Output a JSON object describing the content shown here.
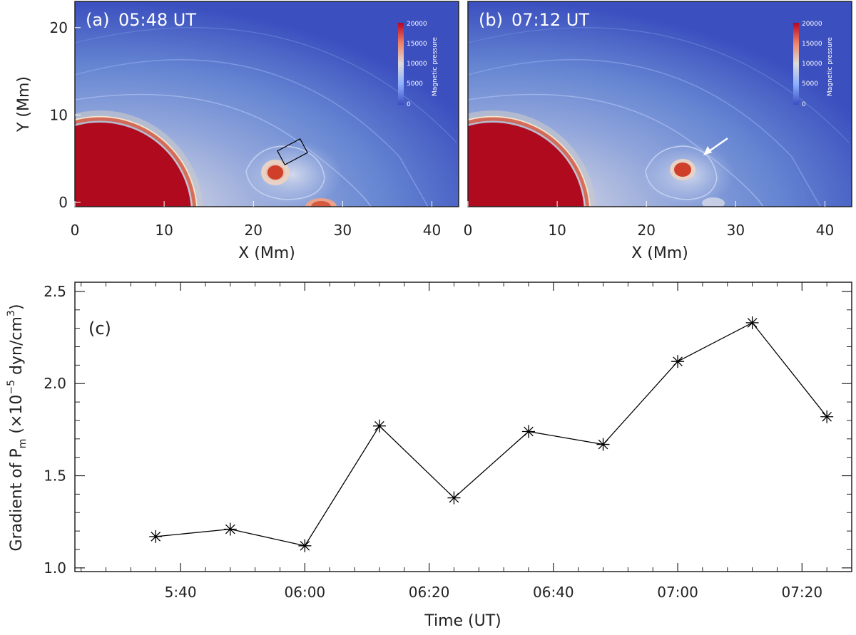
{
  "panels": [
    {
      "label": "(a)",
      "time": "05:48 UT",
      "xlabel": "X (Mm)",
      "ylabel": "Y (Mm)",
      "xlim": [
        0,
        43
      ],
      "ylim": [
        -0.5,
        23
      ],
      "xticks": [
        "0",
        "10",
        "20",
        "30",
        "40"
      ],
      "yticks": [
        "0",
        "10",
        "20"
      ],
      "colorbar": {
        "title": "Magnetic pressure",
        "ticks": [
          "20000",
          "15000",
          "10000",
          "5000",
          "0"
        ]
      },
      "highlight": "box"
    },
    {
      "label": "(b)",
      "time": "07:12 UT",
      "xlabel": "X (Mm)",
      "xlim": [
        0,
        43
      ],
      "ylim": [
        -0.5,
        23
      ],
      "xticks": [
        "0",
        "10",
        "20",
        "30",
        "40"
      ],
      "colorbar": {
        "title": "Magnetic pressure",
        "ticks": [
          "20000",
          "15000",
          "10000",
          "5000",
          "0"
        ]
      },
      "highlight": "arrow"
    }
  ],
  "chart_data": {
    "type": "line",
    "label": "(c)",
    "xlabel": "Time (UT)",
    "ylabel_base": "Gradient of P",
    "ylabel_sub": "m",
    "ylabel_mid": " (×10",
    "ylabel_exp1": "−5",
    "ylabel_units": " dyn/cm",
    "ylabel_exp2": "3",
    "ylabel_close": ")",
    "ylim": [
      0.98,
      2.55
    ],
    "xlim_minutes": [
      323,
      448
    ],
    "x_ticks": [
      {
        "label": "5:40",
        "minute": 340
      },
      {
        "label": "06:00",
        "minute": 360
      },
      {
        "label": "06:20",
        "minute": 380
      },
      {
        "label": "06:40",
        "minute": 400
      },
      {
        "label": "07:00",
        "minute": 420
      },
      {
        "label": "07:20",
        "minute": 440
      }
    ],
    "y_ticks": [
      "1.0",
      "1.5",
      "2.0",
      "2.5"
    ],
    "y_tick_values": [
      1.0,
      1.5,
      2.0,
      2.5
    ],
    "series": [
      {
        "x": [
          "05:36",
          "05:48",
          "06:00",
          "06:12",
          "06:24",
          "06:36",
          "06:48",
          "07:00",
          "07:12",
          "07:24"
        ],
        "values": [
          1.17,
          1.21,
          1.12,
          1.77,
          1.38,
          1.74,
          1.67,
          2.12,
          2.33,
          1.82
        ]
      }
    ],
    "marker": "asterisk",
    "color": "#000000"
  }
}
